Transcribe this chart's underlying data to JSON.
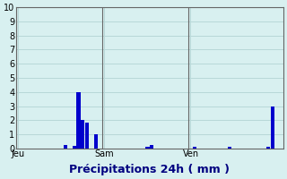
{
  "background_color": "#d8f0f0",
  "grid_color": "#b8d8d8",
  "bar_color": "#0000cc",
  "ylim": [
    0,
    10
  ],
  "yticks": [
    0,
    1,
    2,
    3,
    4,
    5,
    6,
    7,
    8,
    9,
    10
  ],
  "bar_values": [
    0,
    0,
    0,
    0,
    0,
    0,
    0,
    0,
    0,
    0,
    0,
    0.25,
    0,
    0.2,
    4.0,
    2.0,
    1.8,
    0,
    1.0,
    0,
    0,
    0,
    0,
    0,
    0,
    0,
    0,
    0,
    0,
    0,
    0.15,
    0.25,
    0,
    0,
    0,
    0,
    0,
    0,
    0,
    0,
    0,
    0.15,
    0,
    0,
    0,
    0,
    0,
    0,
    0,
    0.1,
    0,
    0,
    0,
    0,
    0,
    0,
    0,
    0,
    0.15,
    3.0,
    0,
    0
  ],
  "vline_positions": [
    0,
    20,
    40
  ],
  "vline_labels": [
    "Jeu",
    "Sam",
    "Ven"
  ],
  "xlabel": "Précipitations 24h ( mm )",
  "tick_fontsize": 7,
  "label_fontsize": 9
}
